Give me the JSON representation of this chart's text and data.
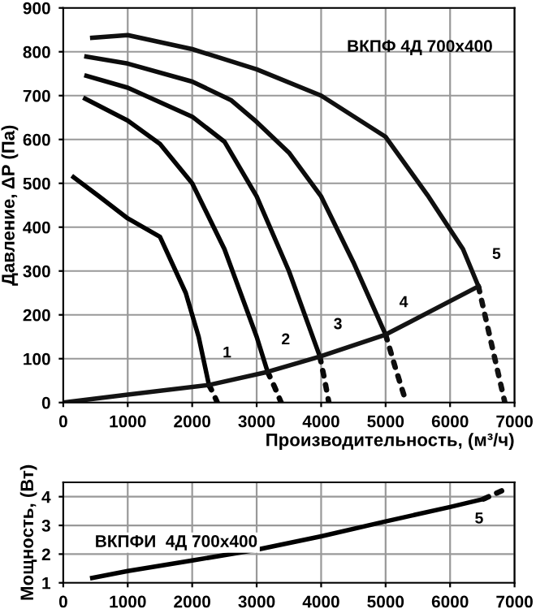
{
  "chart_data": [
    {
      "type": "line",
      "xlabel": "Производительность, (м³/ч)",
      "ylabel": "Давление, ΔP (Па)",
      "xlim": [
        0,
        7000
      ],
      "ylim": [
        0,
        900
      ],
      "xticks": [
        0,
        1000,
        2000,
        3000,
        4000,
        5000,
        6000,
        7000
      ],
      "yticks": [
        0,
        100,
        200,
        300,
        400,
        500,
        600,
        700,
        800,
        900
      ],
      "grid": true,
      "legend": false,
      "marker": "none",
      "annotations": [
        "ВКПФ 4Д 700x400",
        "1",
        "2",
        "3",
        "4",
        "5"
      ],
      "series": [
        {
          "color": "#000000",
          "line_style": "solid",
          "x": [
            160,
            530,
            1000,
            1500,
            1900,
            2100,
            2260
          ],
          "values": [
            514,
            473,
            420,
            378,
            250,
            150,
            40
          ]
        },
        {
          "color": "#020202",
          "line_style": "dotted",
          "x": [
            2260,
            2330,
            2390
          ],
          "values": [
            40,
            20,
            0
          ]
        },
        {
          "color": "#040404",
          "line_style": "solid",
          "x": [
            340,
            1000,
            1500,
            2000,
            2500,
            3000,
            3170
          ],
          "values": [
            693,
            643,
            590,
            500,
            350,
            150,
            70
          ]
        },
        {
          "color": "#060606",
          "line_style": "dotted",
          "x": [
            3170,
            3280,
            3380
          ],
          "values": [
            70,
            35,
            0
          ]
        },
        {
          "color": "#080808",
          "line_style": "solid",
          "x": [
            360,
            1000,
            2000,
            2500,
            3000,
            3500,
            3980
          ],
          "values": [
            745,
            718,
            652,
            595,
            470,
            300,
            105
          ]
        },
        {
          "color": "#0a0a0a",
          "line_style": "dotted",
          "x": [
            3980,
            4050,
            4120
          ],
          "values": [
            105,
            55,
            0
          ]
        },
        {
          "color": "#0c0c0c",
          "line_style": "solid",
          "x": [
            360,
            1000,
            2000,
            2600,
            3000,
            3500,
            4000,
            4500,
            5000
          ],
          "values": [
            789,
            773,
            732,
            690,
            640,
            570,
            470,
            320,
            155
          ]
        },
        {
          "color": "#0e0e0e",
          "line_style": "dotted",
          "x": [
            5000,
            5150,
            5320
          ],
          "values": [
            155,
            80,
            0
          ]
        },
        {
          "color": "#101010",
          "line_style": "solid",
          "x": [
            450,
            1000,
            2000,
            3000,
            4000,
            5000,
            5650,
            6200,
            6440
          ],
          "values": [
            832,
            838,
            806,
            760,
            700,
            606,
            473,
            350,
            265
          ]
        },
        {
          "color": "#121212",
          "line_style": "dotted",
          "x": [
            6440,
            6640,
            6850
          ],
          "values": [
            265,
            135,
            0
          ]
        },
        {
          "color": "#141414",
          "line_style": "solid",
          "x": [
            0,
            1000,
            2260,
            3170,
            3980,
            5000,
            6440
          ],
          "values": [
            0,
            18,
            40,
            70,
            105,
            155,
            265
          ]
        }
      ]
    },
    {
      "type": "line",
      "ylabel": "Мощность, (Вт)",
      "xlim": [
        0,
        7000
      ],
      "ylim": [
        1,
        4.5
      ],
      "xticks": [
        0,
        1000,
        2000,
        3000,
        4000,
        5000,
        6000,
        7000
      ],
      "yticks": [
        1,
        2,
        3,
        4
      ],
      "grid": true,
      "legend": false,
      "marker": "none",
      "annotations": [
        "ВКПФИ  4Д 700x400",
        "5"
      ],
      "series": [
        {
          "color": "#000000",
          "line_style": "solid",
          "x": [
            450,
            1000,
            2000,
            3000,
            4000,
            5000,
            6000,
            6520
          ],
          "values": [
            1.17,
            1.41,
            1.78,
            2.15,
            2.62,
            3.14,
            3.64,
            3.92
          ]
        },
        {
          "color": "#080808",
          "line_style": "dotted",
          "x": [
            6520,
            6700,
            6850
          ],
          "values": [
            3.92,
            4.1,
            4.26
          ]
        }
      ]
    }
  ]
}
